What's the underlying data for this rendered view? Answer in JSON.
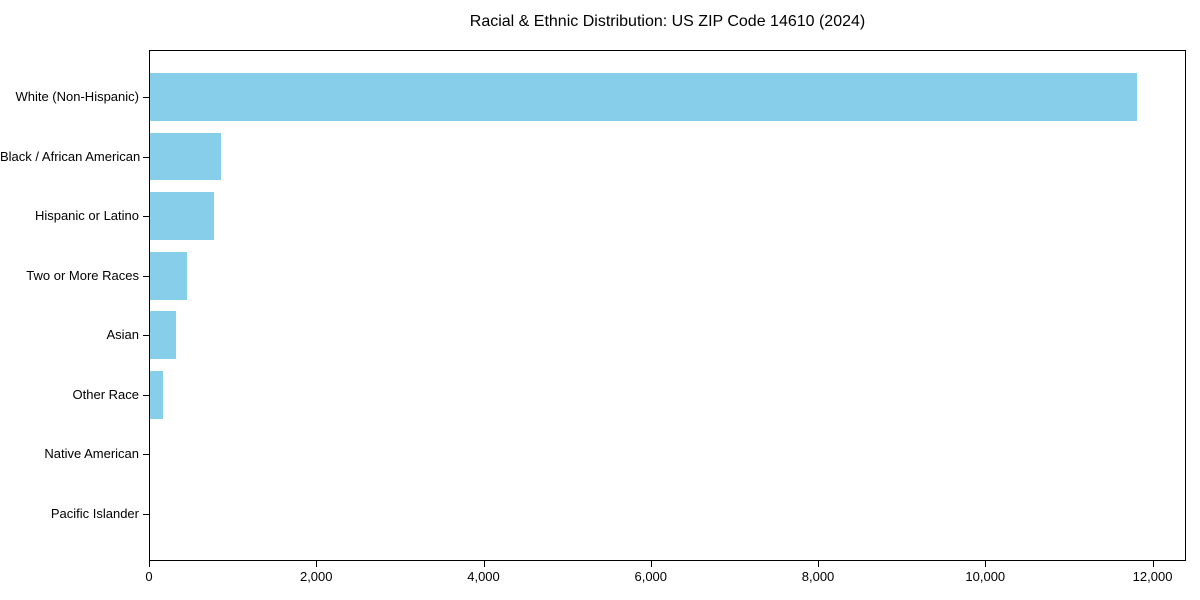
{
  "title": "Racial & Ethnic Distribution: US ZIP Code 14610 (2024)",
  "colors": {
    "bar": "#87CEEB",
    "axis": "#000000",
    "text": "#000000",
    "background": "#ffffff"
  },
  "chart_data": {
    "type": "bar",
    "orientation": "horizontal",
    "title": "Racial & Ethnic Distribution: US ZIP Code 14610 (2024)",
    "xlabel": "",
    "ylabel": "",
    "categories": [
      "White (Non-Hispanic)",
      "Black / African American",
      "Hispanic or Latino",
      "Two or More Races",
      "Asian",
      "Other Race",
      "Native American",
      "Pacific Islander"
    ],
    "values": [
      11800,
      850,
      760,
      440,
      310,
      150,
      0,
      0
    ],
    "xlim": [
      0,
      12400
    ],
    "x_ticks": [
      0,
      2000,
      4000,
      6000,
      8000,
      10000,
      12000
    ],
    "x_tick_labels": [
      "0",
      "2,000",
      "4,000",
      "6,000",
      "8,000",
      "10,000",
      "12,000"
    ],
    "bar_color": "#87CEEB",
    "grid": false,
    "legend": null
  }
}
